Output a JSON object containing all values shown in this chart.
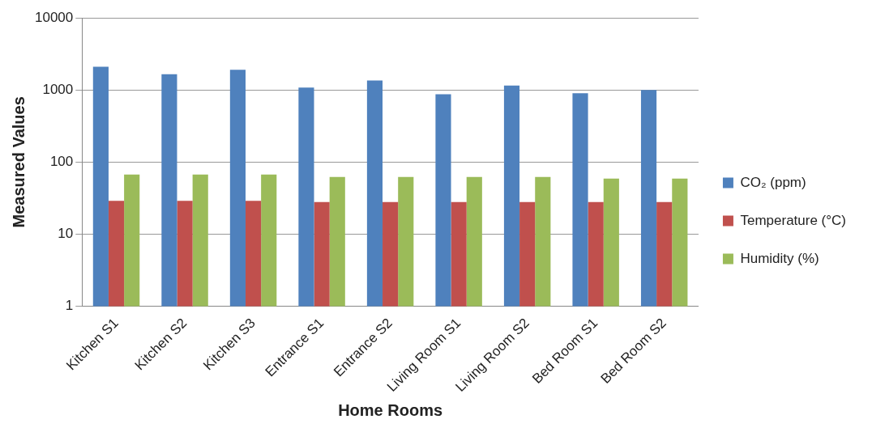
{
  "chart_data": {
    "type": "bar",
    "xlabel": "Home Rooms",
    "ylabel": "Measured Values",
    "categories": [
      "Kitchen S1",
      "Kitchen S2",
      "Kitchen S3",
      "Entrance S1",
      "Entrance S2",
      "Living Room S1",
      "Living Room S2",
      "Bed Room S1",
      "Bed Room S2"
    ],
    "series": [
      {
        "name": "CO₂ (ppm)",
        "color": "#4f81bd",
        "values": [
          2100,
          1650,
          1900,
          1080,
          1350,
          870,
          1150,
          900,
          1000
        ]
      },
      {
        "name": "Temperature (°C)",
        "color": "#c0504d",
        "values": [
          29,
          29,
          29,
          28,
          28,
          28,
          28,
          28,
          28
        ]
      },
      {
        "name": "Humidity (%)",
        "color": "#9bbb59",
        "values": [
          67,
          67,
          67,
          62,
          62,
          62,
          62,
          59,
          59
        ]
      }
    ],
    "log": "y",
    "ylim": [
      1,
      10000
    ],
    "yticks": [
      1,
      10,
      100,
      1000,
      10000
    ],
    "grid": "y",
    "legend": "right"
  }
}
